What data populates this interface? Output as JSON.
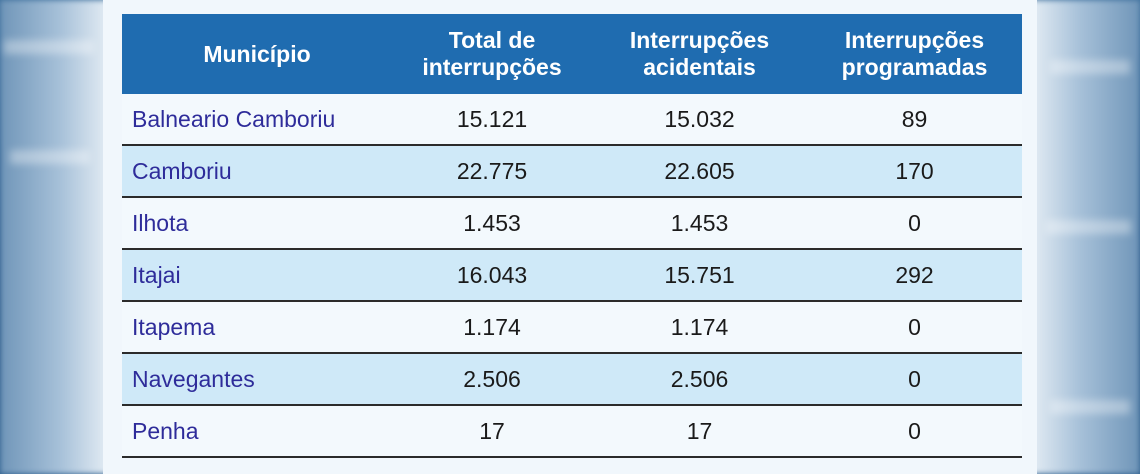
{
  "table": {
    "headers": [
      "Município",
      "Total de interrupções",
      "Interrupções acidentais",
      "Interrupções programadas"
    ],
    "rows": [
      [
        "Balneario Camboriu",
        "15.121",
        "15.032",
        "89"
      ],
      [
        "Camboriu",
        "22.775",
        "22.605",
        "170"
      ],
      [
        "Ilhota",
        "1.453",
        "1.453",
        "0"
      ],
      [
        "Itajai",
        "16.043",
        "15.751",
        "292"
      ],
      [
        "Itapema",
        "1.174",
        "1.174",
        "0"
      ],
      [
        "Navegantes",
        "2.506",
        "2.506",
        "0"
      ],
      [
        "Penha",
        "17",
        "17",
        "0"
      ]
    ]
  },
  "colors": {
    "header_bg": "#1f6cb0",
    "header_text": "#ffffff",
    "municipality_text": "#2e2c9a",
    "row_alt_bg": "#cfe9f8"
  }
}
